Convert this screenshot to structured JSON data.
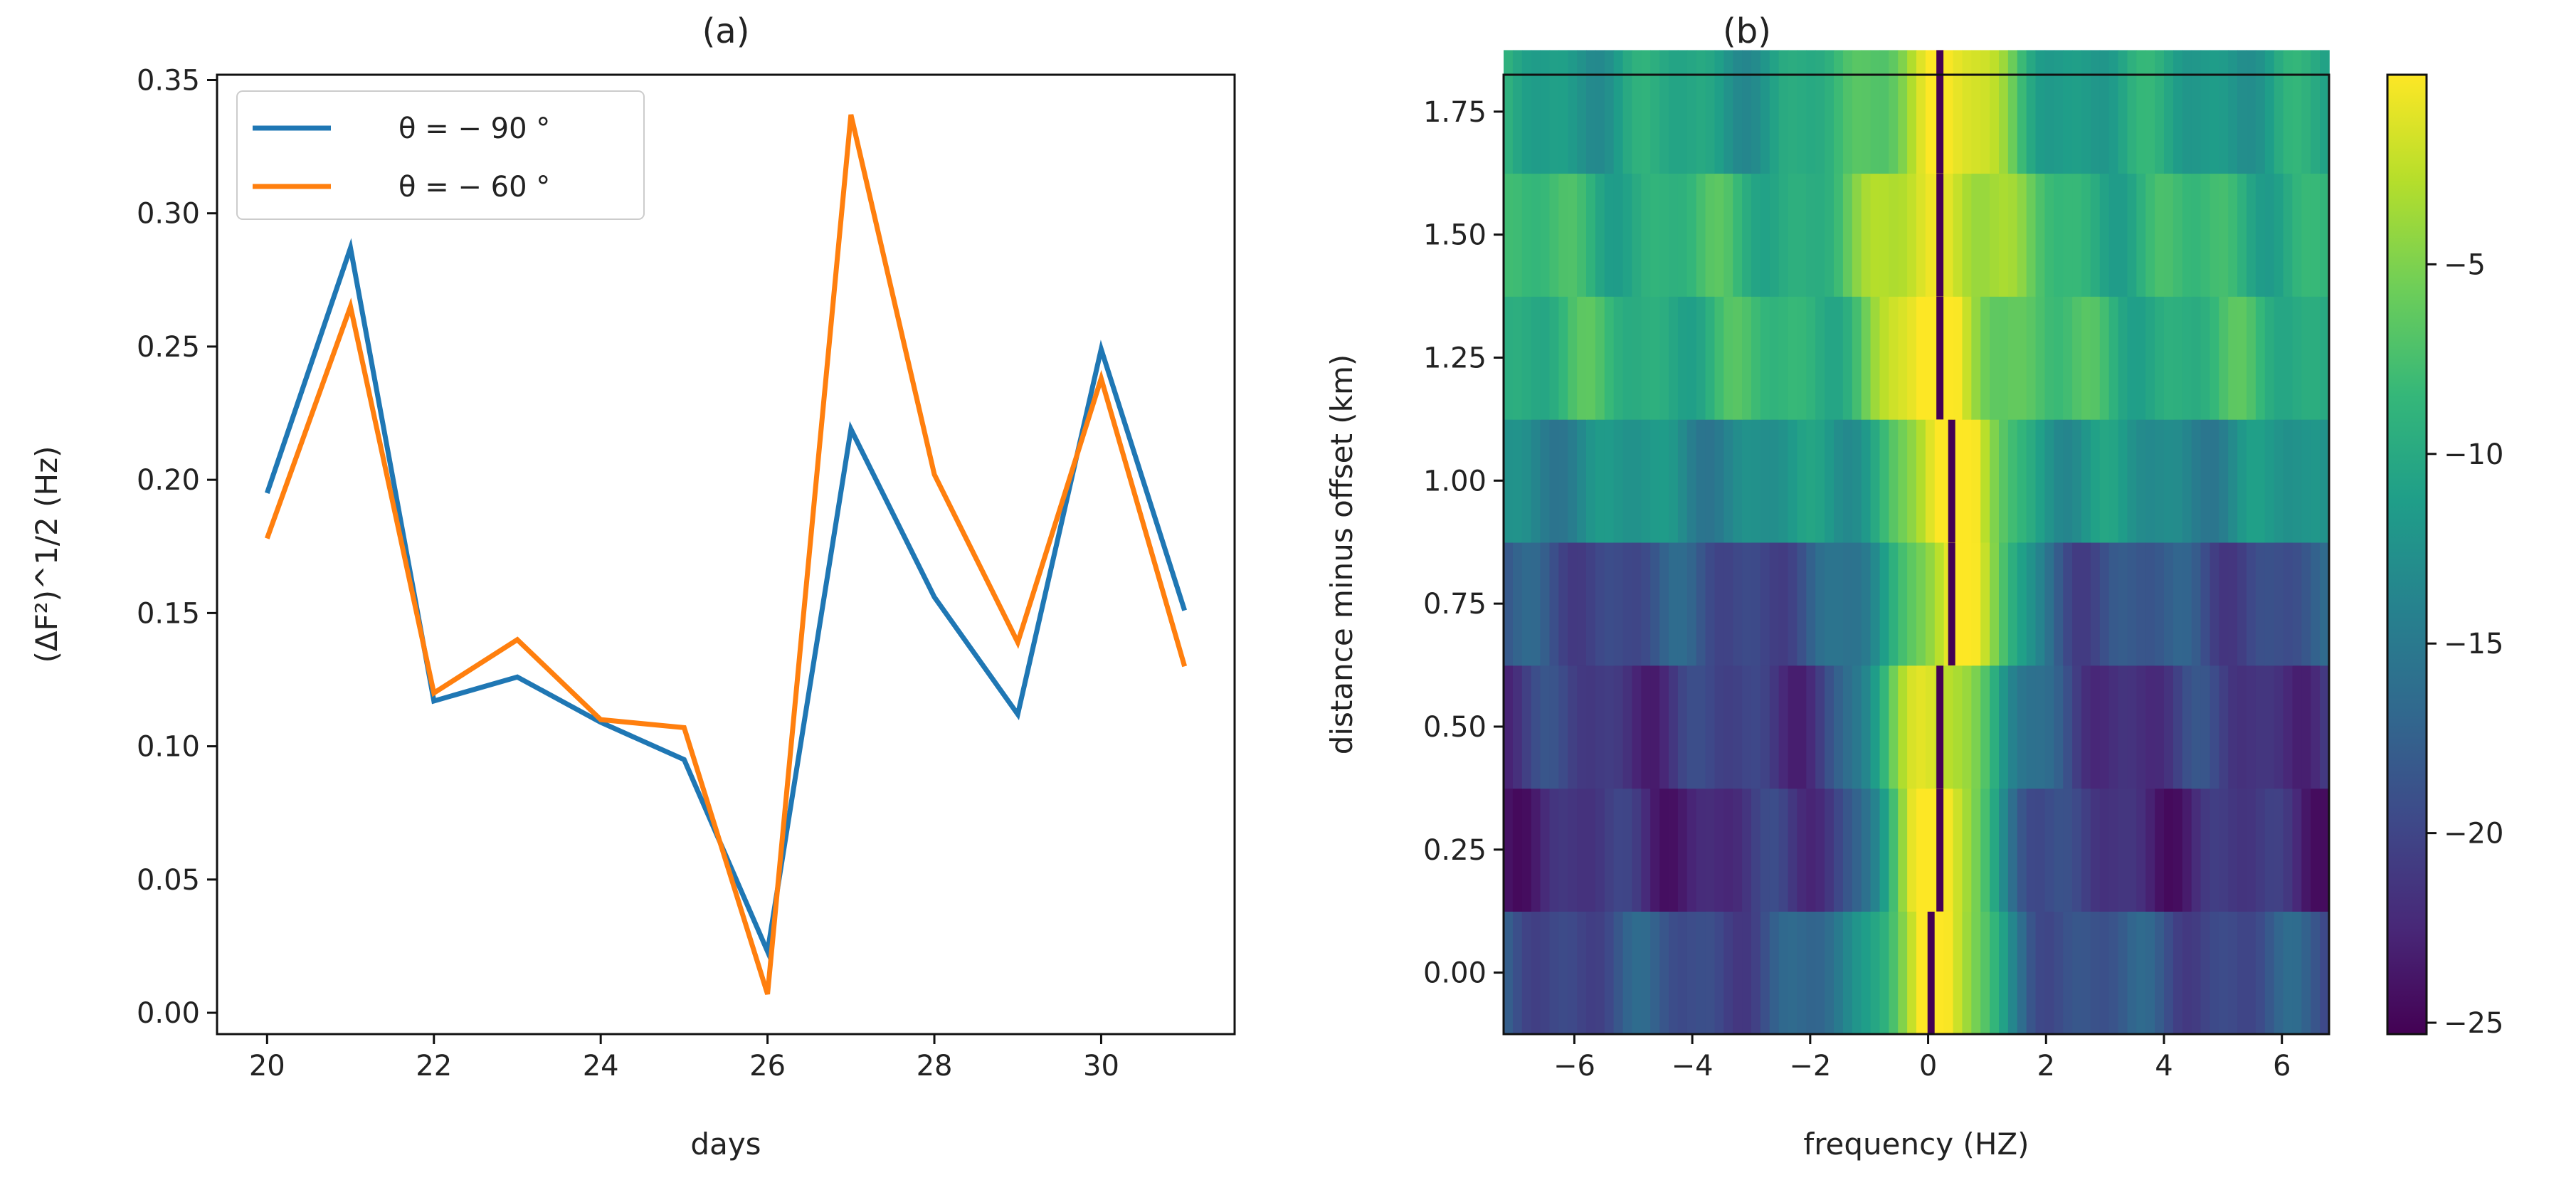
{
  "chart_data": [
    {
      "type": "line",
      "title": "(a)",
      "xlabel": "days",
      "ylabel": "(ΔF²)^1/2 (Hz)",
      "xlim": [
        19.4,
        31.6
      ],
      "ylim": [
        -0.008,
        0.352
      ],
      "xticks": [
        "20",
        "22",
        "24",
        "26",
        "28",
        "30"
      ],
      "xtick_values": [
        20,
        22,
        24,
        26,
        28,
        30
      ],
      "yticks": [
        "0.00",
        "0.05",
        "0.10",
        "0.15",
        "0.20",
        "0.25",
        "0.30",
        "0.35"
      ],
      "ytick_values": [
        0,
        0.05,
        0.1,
        0.15,
        0.2,
        0.25,
        0.3,
        0.35
      ],
      "legend_position": "top-left",
      "x": [
        20,
        21,
        22,
        23,
        24,
        25,
        26,
        27,
        28,
        29,
        30,
        31
      ],
      "series": [
        {
          "name": "θ = −90°",
          "legend_label": "θ  = − 90 °",
          "color": "#1f77b4",
          "values": [
            0.195,
            0.287,
            0.117,
            0.126,
            0.109,
            0.095,
            0.023,
            0.219,
            0.156,
            0.112,
            0.249,
            0.151
          ]
        },
        {
          "name": "θ = −60°",
          "legend_label": "θ  = − 60 °",
          "color": "#ff7f0e",
          "values": [
            0.178,
            0.265,
            0.12,
            0.14,
            0.11,
            0.107,
            0.007,
            0.337,
            0.202,
            0.139,
            0.238,
            0.13
          ]
        }
      ]
    },
    {
      "type": "heatmap",
      "title": "(b)",
      "xlabel": "frequency (HZ)",
      "ylabel": "distance minus offset (km)",
      "xlim": [
        -7.2,
        6.8
      ],
      "ylim": [
        -0.125,
        1.825
      ],
      "xticks": [
        "−6",
        "−4",
        "−2",
        "0",
        "2",
        "4",
        "6"
      ],
      "xtick_values": [
        -6,
        -4,
        -2,
        0,
        2,
        4,
        6
      ],
      "yticks": [
        "0.00",
        "0.25",
        "0.50",
        "0.75",
        "1.00",
        "1.25",
        "1.50",
        "1.75"
      ],
      "ytick_values": [
        0,
        0.25,
        0.5,
        0.75,
        1.0,
        1.25,
        1.5,
        1.75
      ],
      "rows": [
        0.0,
        0.25,
        0.5,
        0.75,
        1.0,
        1.25,
        1.5,
        1.75
      ],
      "peak_frequency": [
        0.05,
        0.2,
        0.2,
        0.4,
        0.4,
        0.2,
        0.2,
        0.2
      ],
      "background_level": [
        -19,
        -22,
        -21,
        -19,
        -13,
        -9,
        -9,
        -11
      ],
      "colorbar": {
        "min": -25.3,
        "max": 0,
        "ticks": [
          "−5",
          "−10",
          "−15",
          "−20",
          "−25"
        ],
        "tick_values": [
          -5,
          -10,
          -15,
          -20,
          -25
        ],
        "colormap": [
          "#440154",
          "#482878",
          "#3e4989",
          "#31688e",
          "#26828e",
          "#1f9e89",
          "#35b779",
          "#6ece58",
          "#b5de2b",
          "#fde725"
        ]
      }
    }
  ]
}
